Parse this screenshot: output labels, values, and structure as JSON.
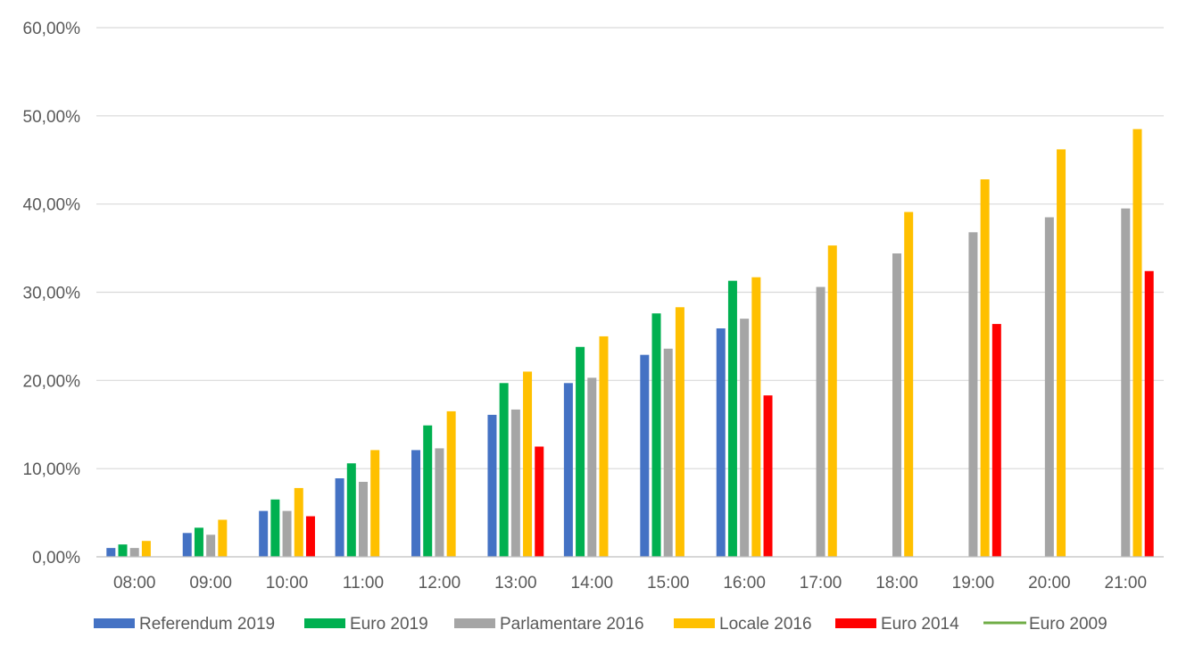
{
  "chart_data": {
    "type": "bar",
    "title": "",
    "xlabel": "",
    "ylabel": "",
    "ylim": [
      0,
      60
    ],
    "y_ticks": [
      "0,00%",
      "10,00%",
      "20,00%",
      "30,00%",
      "40,00%",
      "50,00%",
      "60,00%"
    ],
    "y_tick_values": [
      0,
      10,
      20,
      30,
      40,
      50,
      60
    ],
    "grid": true,
    "legend_position": "bottom",
    "categories": [
      "08:00",
      "09:00",
      "10:00",
      "11:00",
      "12:00",
      "13:00",
      "14:00",
      "15:00",
      "16:00",
      "17:00",
      "18:00",
      "19:00",
      "20:00",
      "21:00"
    ],
    "series": [
      {
        "name": "Referendum 2019",
        "color": "#4472C4",
        "marker": "bar",
        "values": [
          1.0,
          2.7,
          5.2,
          8.9,
          12.1,
          16.1,
          19.7,
          22.9,
          25.9,
          null,
          null,
          null,
          null,
          null
        ]
      },
      {
        "name": "Euro 2019",
        "color": "#00B050",
        "marker": "bar",
        "values": [
          1.4,
          3.3,
          6.5,
          10.6,
          14.9,
          19.7,
          23.8,
          27.6,
          31.3,
          null,
          null,
          null,
          null,
          null
        ]
      },
      {
        "name": "Parlamentare 2016",
        "color": "#A5A5A5",
        "marker": "bar",
        "values": [
          1.0,
          2.5,
          5.2,
          8.5,
          12.3,
          16.7,
          20.3,
          23.6,
          27.0,
          30.6,
          34.4,
          36.8,
          38.5,
          39.5
        ]
      },
      {
        "name": "Locale 2016",
        "color": "#FFC000",
        "marker": "bar",
        "values": [
          1.8,
          4.2,
          7.8,
          12.1,
          16.5,
          21.0,
          25.0,
          28.3,
          31.7,
          35.3,
          39.1,
          42.8,
          46.2,
          48.5
        ]
      },
      {
        "name": "Euro 2014",
        "color": "#FF0000",
        "marker": "bar",
        "values": [
          null,
          null,
          4.6,
          null,
          null,
          12.5,
          null,
          null,
          18.3,
          null,
          null,
          26.4,
          null,
          32.4
        ]
      },
      {
        "name": "Euro 2009",
        "color": "#70AD47",
        "marker": "line",
        "values": [
          null,
          null,
          null,
          null,
          null,
          null,
          null,
          null,
          null,
          null,
          null,
          null,
          null,
          null
        ]
      }
    ]
  }
}
